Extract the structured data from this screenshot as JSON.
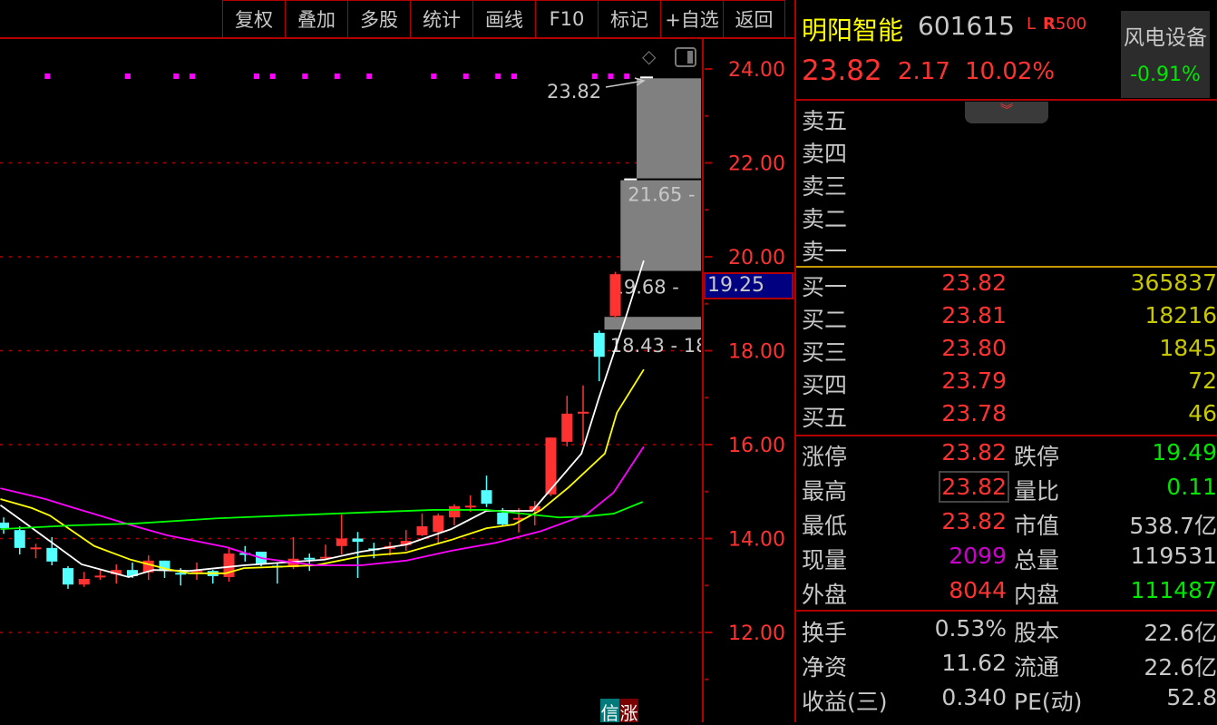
{
  "toolbar": {
    "buttons": [
      "复权",
      "叠加",
      "多股",
      "统计",
      "画线",
      "F10",
      "标记",
      "+自选",
      "返回"
    ]
  },
  "chart_icons": {
    "diamond": "diamond-icon",
    "panel": "panel-toggle-icon"
  },
  "chart_data": {
    "type": "candlestick",
    "y_axis": {
      "ticks": [
        "24.00",
        "22.00",
        "20.00",
        "18.00",
        "16.00",
        "14.00",
        "12.00"
      ],
      "range": [
        12,
        24
      ],
      "grid": "dotted"
    },
    "cursor_price": "19.25",
    "candles": [
      [
        14.34,
        14.45,
        14.1,
        14.22
      ],
      [
        14.18,
        14.26,
        13.66,
        13.8
      ],
      [
        13.79,
        13.89,
        13.58,
        13.81
      ],
      [
        13.8,
        14.03,
        13.43,
        13.51
      ],
      [
        13.37,
        13.41,
        12.93,
        13.02
      ],
      [
        13.02,
        13.29,
        12.97,
        13.14
      ],
      [
        13.19,
        13.35,
        13.12,
        13.21
      ],
      [
        13.24,
        13.45,
        13.04,
        13.33
      ],
      [
        13.33,
        13.49,
        13.16,
        13.2
      ],
      [
        13.28,
        13.64,
        13.12,
        13.53
      ],
      [
        13.53,
        13.53,
        13.16,
        13.33
      ],
      [
        13.27,
        13.37,
        13.0,
        13.25
      ],
      [
        13.3,
        13.49,
        13.12,
        13.32
      ],
      [
        13.31,
        13.33,
        13.04,
        13.2
      ],
      [
        13.18,
        13.82,
        13.08,
        13.68
      ],
      [
        13.69,
        13.84,
        13.51,
        13.67
      ],
      [
        13.72,
        13.72,
        13.41,
        13.45
      ],
      [
        13.42,
        13.47,
        13.04,
        13.4
      ],
      [
        13.39,
        14.03,
        13.35,
        13.57
      ],
      [
        13.59,
        13.68,
        13.31,
        13.57
      ],
      [
        13.59,
        13.87,
        13.55,
        13.61
      ],
      [
        13.84,
        14.51,
        13.66,
        14.0
      ],
      [
        14.0,
        14.14,
        13.16,
        13.93
      ],
      [
        13.79,
        13.91,
        13.58,
        13.77
      ],
      [
        13.78,
        13.93,
        13.64,
        13.84
      ],
      [
        13.86,
        14.18,
        13.74,
        13.95
      ],
      [
        14.07,
        14.53,
        14.05,
        14.26
      ],
      [
        14.14,
        14.53,
        13.89,
        14.49
      ],
      [
        14.45,
        14.73,
        14.28,
        14.69
      ],
      [
        14.68,
        14.92,
        14.57,
        14.7
      ],
      [
        15.03,
        15.34,
        14.67,
        14.74
      ],
      [
        14.55,
        14.65,
        14.28,
        14.3
      ],
      [
        14.42,
        14.65,
        14.13,
        14.44
      ],
      [
        14.59,
        14.8,
        14.28,
        14.69
      ],
      [
        14.94,
        16.15,
        14.9,
        16.15
      ],
      [
        16.06,
        17.04,
        15.96,
        16.66
      ],
      [
        16.66,
        17.26,
        16.0,
        16.7
      ],
      [
        18.38,
        18.43,
        17.35,
        17.87
      ],
      [
        18.74,
        19.68,
        18.7,
        19.63
      ],
      [
        21.65,
        21.65,
        21.65,
        21.65
      ],
      [
        23.82,
        23.82,
        23.82,
        23.82
      ]
    ],
    "candle_format": [
      "open",
      "high",
      "low",
      "close"
    ],
    "moving_averages": [
      {
        "color": "#ffffff",
        "points": [
          [
            -0.2,
            14.71
          ],
          [
            1.46,
            14.3
          ],
          [
            4.85,
            13.45
          ],
          [
            7.77,
            13.18
          ],
          [
            9.3,
            13.33
          ],
          [
            11.55,
            13.31
          ],
          [
            14.93,
            13.43
          ],
          [
            19.94,
            13.55
          ],
          [
            22.2,
            13.72
          ],
          [
            25.0,
            13.87
          ],
          [
            27.8,
            14.2
          ],
          [
            30.0,
            14.59
          ],
          [
            32.85,
            14.59
          ],
          [
            35.9,
            15.81
          ],
          [
            36.96,
            16.97
          ],
          [
            38.65,
            18.71
          ],
          [
            39.77,
            19.92
          ]
        ]
      },
      {
        "color": "#ffff00",
        "points": [
          [
            -0.2,
            14.84
          ],
          [
            1.75,
            14.65
          ],
          [
            2.87,
            14.49
          ],
          [
            5.63,
            13.84
          ],
          [
            7.89,
            13.55
          ],
          [
            10.14,
            13.35
          ],
          [
            11.55,
            13.26
          ],
          [
            13.8,
            13.26
          ],
          [
            14.93,
            13.37
          ],
          [
            19.38,
            13.43
          ],
          [
            22.2,
            13.62
          ],
          [
            25.0,
            13.7
          ],
          [
            27.8,
            13.97
          ],
          [
            30.0,
            14.22
          ],
          [
            31.7,
            14.3
          ],
          [
            33.4,
            14.61
          ],
          [
            35.1,
            15.09
          ],
          [
            37.35,
            15.81
          ],
          [
            38.1,
            16.68
          ],
          [
            39.77,
            17.6
          ]
        ]
      },
      {
        "color": "#ff00ff",
        "points": [
          [
            -0.2,
            15.07
          ],
          [
            2.6,
            14.84
          ],
          [
            4.0,
            14.69
          ],
          [
            8.17,
            14.26
          ],
          [
            10.14,
            14.07
          ],
          [
            13.8,
            13.82
          ],
          [
            16.06,
            13.58
          ],
          [
            19.38,
            13.43
          ],
          [
            22.2,
            13.43
          ],
          [
            25.0,
            13.53
          ],
          [
            27.8,
            13.74
          ],
          [
            30.6,
            13.91
          ],
          [
            33.4,
            14.16
          ],
          [
            36.2,
            14.51
          ],
          [
            37.9,
            14.98
          ],
          [
            39.77,
            15.96
          ]
        ]
      },
      {
        "color": "#00ff00",
        "points": [
          [
            -0.2,
            14.2
          ],
          [
            4.28,
            14.28
          ],
          [
            8.17,
            14.32
          ],
          [
            13.24,
            14.43
          ],
          [
            20.5,
            14.53
          ],
          [
            26.7,
            14.61
          ],
          [
            30.0,
            14.61
          ],
          [
            34.5,
            14.45
          ],
          [
            36.2,
            14.47
          ],
          [
            37.9,
            14.53
          ],
          [
            39.7,
            14.78
          ]
        ]
      }
    ],
    "signal_markers": [
      3,
      8,
      11,
      12,
      16,
      17,
      19,
      21,
      23,
      27,
      29,
      31,
      32,
      37,
      38,
      39
    ],
    "gaps": [
      {
        "from_candle": 40,
        "low": 21.65,
        "high": 23.82
      },
      {
        "from_candle": 39,
        "low": 19.68,
        "high": 21.65,
        "label": "21.65 -"
      },
      {
        "from_candle": 38,
        "low": 18.43,
        "high": 18.74,
        "label": "19.68 -"
      }
    ],
    "gap_bottom_label": "18.43 - 18",
    "last_price_label": "23.82",
    "up_color": "#ff3232",
    "down_color": "#54ffff"
  },
  "badge": {
    "left": "信",
    "right": "涨"
  },
  "quote": {
    "name": "明阳智能",
    "code": "601615",
    "tag_l": "L",
    "tag_r": "R",
    "tag_500": "500",
    "price": "23.82",
    "change": "2.17",
    "change_pct": "10.02%",
    "sector": {
      "name": "风电设备",
      "change_pct": "-0.91%"
    },
    "collapse_icon": "double-chevron-down-icon",
    "asks": [
      {
        "label": "卖五"
      },
      {
        "label": "卖四"
      },
      {
        "label": "卖三"
      },
      {
        "label": "卖二"
      },
      {
        "label": "卖一"
      }
    ],
    "bids": [
      {
        "label": "买一",
        "price": "23.82",
        "vol": "365837"
      },
      {
        "label": "买二",
        "price": "23.81",
        "vol": "18216"
      },
      {
        "label": "买三",
        "price": "23.80",
        "vol": "1845"
      },
      {
        "label": "买四",
        "price": "23.79",
        "vol": "72"
      },
      {
        "label": "买五",
        "price": "23.78",
        "vol": "46"
      }
    ],
    "stats": [
      {
        "l1": "涨停",
        "v1": "23.82",
        "c1": "#ff3232",
        "l2": "跌停",
        "v2": "19.49",
        "c2": "#00e600"
      },
      {
        "l1": "最高",
        "v1": "23.82",
        "c1": "#ff3232",
        "l2": "量比",
        "v2": "0.11",
        "c2": "#00e600"
      },
      {
        "l1": "最低",
        "v1": "23.82",
        "c1": "#ff3232",
        "l2": "市值",
        "v2": "538.7亿",
        "c2": "#c8c8c8"
      },
      {
        "l1": "现量",
        "v1": "2099",
        "c1": "#cc00cc",
        "l2": "总量",
        "v2": "119531",
        "c2": "#c8c8c8"
      },
      {
        "l1": "外盘",
        "v1": "8044",
        "c1": "#ff3232",
        "l2": "内盘",
        "v2": "111487",
        "c2": "#00e600"
      }
    ],
    "fundamentals": [
      {
        "l1": "换手",
        "v1": "0.53%",
        "l2": "股本",
        "v2": "22.6亿"
      },
      {
        "l1": "净资",
        "v1": "11.62",
        "l2": "流通",
        "v2": "22.6亿"
      },
      {
        "l1": "收益(三)",
        "v1": "0.340",
        "l2": "PE(动)",
        "v2": "52.8"
      }
    ]
  }
}
